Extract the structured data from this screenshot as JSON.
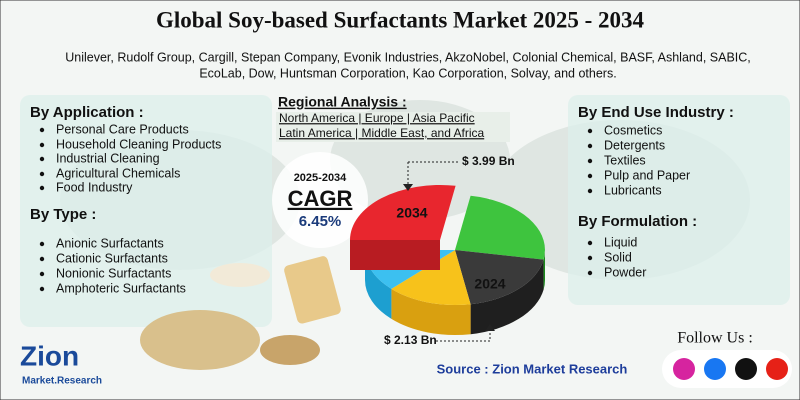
{
  "header": {
    "title": "Global Soy-based Surfactants Market 2025 - 2034",
    "companies": [
      "Unilever, Rudolf Group, Cargill, Stepan Company, Evonik Industries, AkzoNobel, Colonial Chemical, BASF, Ashland, SABIC,",
      "EcoLab, Dow, Huntsman Corporation, Kao Corporation, Solvay, and others."
    ]
  },
  "by_application": {
    "heading": "By Application :",
    "items": [
      "Personal Care Products",
      "Household Cleaning Products",
      "Industrial Cleaning",
      "Agricultural Chemicals",
      "Food Industry"
    ]
  },
  "by_type": {
    "heading": "By Type :",
    "items": [
      "Anionic Surfactants",
      "Cationic Surfactants",
      "Nonionic Surfactants",
      "Amphoteric Surfactants"
    ]
  },
  "regional": {
    "heading": "Regional Analysis :",
    "lines": [
      "North America | Europe | Asia Pacific",
      "Latin America | Middle East, and Africa"
    ]
  },
  "cagr": {
    "period": "2025-2034",
    "label": "CAGR",
    "value": "6.45%"
  },
  "pie": {
    "label_2034": "2034",
    "label_2024": "2024",
    "value_2034": "$ 3.99 Bn",
    "value_2024": "$ 2.13 Bn"
  },
  "by_end_use": {
    "heading": "By End Use Industry :",
    "items": [
      "Cosmetics",
      "Detergents",
      "Textiles",
      "Pulp and Paper",
      "Lubricants"
    ]
  },
  "by_formulation": {
    "heading": "By Formulation :",
    "items": [
      "Liquid",
      "Solid",
      "Powder"
    ]
  },
  "source": "Source : Zion Market Research",
  "follow": "Follow Us :",
  "logo": {
    "name": "Zion",
    "sub": "Market.Research"
  }
}
